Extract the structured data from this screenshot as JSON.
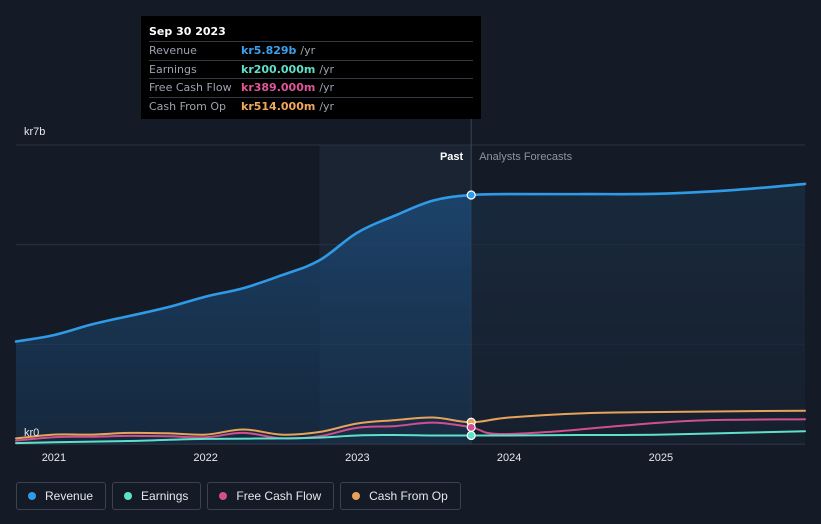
{
  "colors": {
    "revenue": "#2f9be6",
    "earnings": "#5fe0c8",
    "free_cash_flow": "#cf4f8f",
    "cash_from_op": "#e8a35a",
    "background": "#151b26",
    "past_shade": "#1b3654"
  },
  "tooltip": {
    "date": "Sep 30 2023",
    "rows": [
      {
        "label": "Revenue",
        "value": "kr5.829b",
        "unit": "/yr",
        "color": "#3aa0ee"
      },
      {
        "label": "Earnings",
        "value": "kr200.000m",
        "unit": "/yr",
        "color": "#5fe0c8"
      },
      {
        "label": "Free Cash Flow",
        "value": "kr389.000m",
        "unit": "/yr",
        "color": "#e0569a"
      },
      {
        "label": "Cash From Op",
        "value": "kr514.000m",
        "unit": "/yr",
        "color": "#f0a85c"
      }
    ]
  },
  "chart_data": {
    "type": "line",
    "y_top_label": "kr7b",
    "y_bottom_label": "kr0",
    "ylim": [
      0,
      7
    ],
    "y_unit": "billion kr",
    "xlim": [
      2020.75,
      2025.95
    ],
    "x_ticks": [
      "2021",
      "2022",
      "2023",
      "2024",
      "2025"
    ],
    "past_label": "Past",
    "forecast_label": "Analysts Forecasts",
    "divider_x": 2023.75,
    "highlight_from_x": 2022.75,
    "series": [
      {
        "name": "Revenue",
        "color": "#2f9be6",
        "area": true,
        "points": [
          [
            2020.75,
            2.4
          ],
          [
            2021.0,
            2.55
          ],
          [
            2021.25,
            2.8
          ],
          [
            2021.5,
            3.0
          ],
          [
            2021.75,
            3.2
          ],
          [
            2022.0,
            3.45
          ],
          [
            2022.25,
            3.65
          ],
          [
            2022.5,
            3.95
          ],
          [
            2022.75,
            4.3
          ],
          [
            2023.0,
            4.95
          ],
          [
            2023.25,
            5.35
          ],
          [
            2023.5,
            5.7
          ],
          [
            2023.75,
            5.83
          ],
          [
            2024.0,
            5.85
          ],
          [
            2024.5,
            5.85
          ],
          [
            2025.0,
            5.86
          ],
          [
            2025.5,
            5.95
          ],
          [
            2025.95,
            6.09
          ]
        ]
      },
      {
        "name": "Earnings",
        "color": "#5fe0c8",
        "area": false,
        "points": [
          [
            2020.75,
            0.02
          ],
          [
            2021.0,
            0.04
          ],
          [
            2021.5,
            0.07
          ],
          [
            2022.0,
            0.12
          ],
          [
            2022.5,
            0.13
          ],
          [
            2022.75,
            0.15
          ],
          [
            2023.0,
            0.2
          ],
          [
            2023.25,
            0.21
          ],
          [
            2023.5,
            0.2
          ],
          [
            2023.75,
            0.2
          ],
          [
            2024.0,
            0.2
          ],
          [
            2024.5,
            0.21
          ],
          [
            2025.0,
            0.22
          ],
          [
            2025.5,
            0.26
          ],
          [
            2025.95,
            0.3
          ]
        ]
      },
      {
        "name": "Free Cash Flow",
        "color": "#cf4f8f",
        "area": false,
        "points": [
          [
            2020.75,
            0.08
          ],
          [
            2021.0,
            0.16
          ],
          [
            2021.25,
            0.17
          ],
          [
            2021.5,
            0.19
          ],
          [
            2021.75,
            0.18
          ],
          [
            2022.0,
            0.16
          ],
          [
            2022.25,
            0.26
          ],
          [
            2022.5,
            0.13
          ],
          [
            2022.75,
            0.18
          ],
          [
            2023.0,
            0.38
          ],
          [
            2023.25,
            0.42
          ],
          [
            2023.5,
            0.5
          ],
          [
            2023.75,
            0.39
          ],
          [
            2023.9,
            0.24
          ],
          [
            2024.25,
            0.28
          ],
          [
            2024.75,
            0.43
          ],
          [
            2025.25,
            0.55
          ],
          [
            2025.95,
            0.58
          ]
        ]
      },
      {
        "name": "Cash From Op",
        "color": "#e8a35a",
        "area": false,
        "points": [
          [
            2020.75,
            0.13
          ],
          [
            2021.0,
            0.22
          ],
          [
            2021.25,
            0.22
          ],
          [
            2021.5,
            0.26
          ],
          [
            2021.75,
            0.25
          ],
          [
            2022.0,
            0.22
          ],
          [
            2022.25,
            0.34
          ],
          [
            2022.5,
            0.22
          ],
          [
            2022.75,
            0.28
          ],
          [
            2023.0,
            0.48
          ],
          [
            2023.25,
            0.56
          ],
          [
            2023.5,
            0.62
          ],
          [
            2023.75,
            0.51
          ],
          [
            2024.0,
            0.62
          ],
          [
            2024.5,
            0.72
          ],
          [
            2025.0,
            0.75
          ],
          [
            2025.95,
            0.78
          ]
        ]
      }
    ]
  },
  "legend": [
    {
      "label": "Revenue",
      "color": "#2f9be6"
    },
    {
      "label": "Earnings",
      "color": "#5fe0c8"
    },
    {
      "label": "Free Cash Flow",
      "color": "#cf4f8f"
    },
    {
      "label": "Cash From Op",
      "color": "#e8a35a"
    }
  ]
}
